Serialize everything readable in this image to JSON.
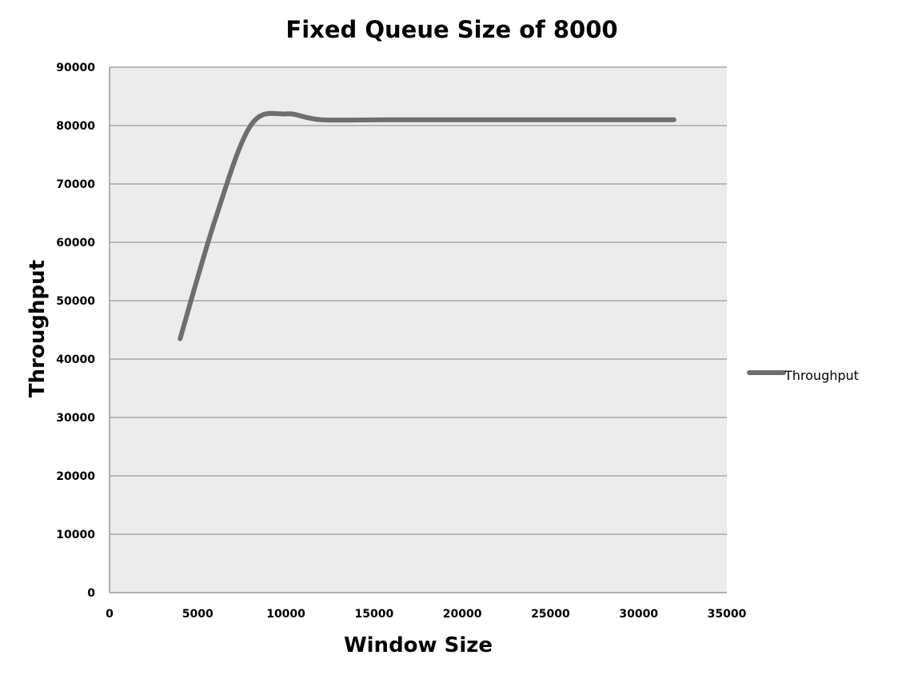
{
  "chart_data": {
    "type": "line",
    "title": "Fixed Queue Size of 8000",
    "xlabel": "Window Size",
    "ylabel": "Throughput",
    "xlim": [
      0,
      35000
    ],
    "ylim": [
      0,
      90000
    ],
    "x_ticks": [
      "0",
      "5000",
      "10000",
      "15000",
      "20000",
      "25000",
      "30000",
      "35000"
    ],
    "y_ticks": [
      "0",
      "10000",
      "20000",
      "30000",
      "40000",
      "50000",
      "60000",
      "70000",
      "80000",
      "90000"
    ],
    "grid": true,
    "smooth": true,
    "legend_position": "right",
    "plot_background": "#ececec",
    "series": [
      {
        "name": "Throughput",
        "color": "#6e6e6e",
        "x": [
          4000,
          6000,
          8000,
          10000,
          12000,
          16000,
          24000,
          32000
        ],
        "y": [
          43500,
          64000,
          80000,
          82000,
          81000,
          81000,
          81000,
          81000
        ]
      }
    ]
  }
}
